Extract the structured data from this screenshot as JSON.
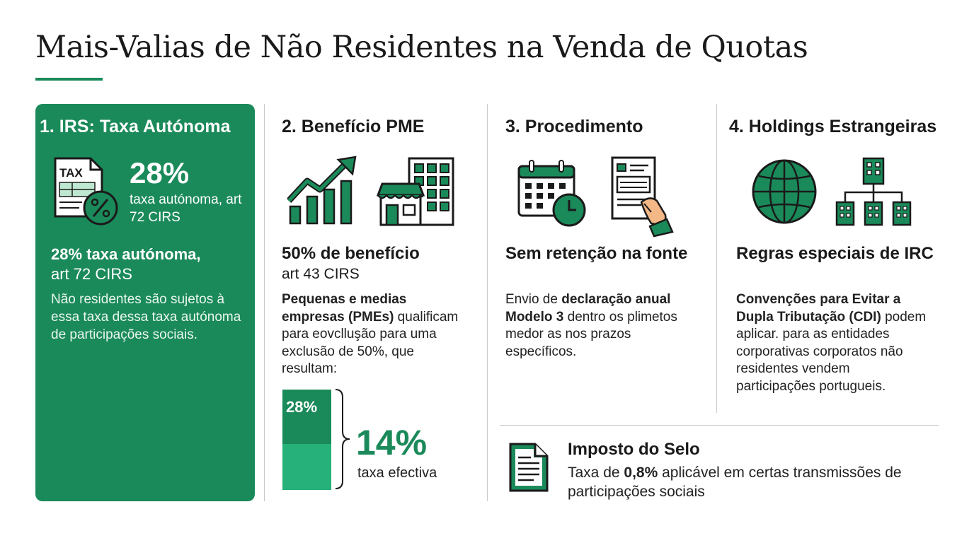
{
  "title": "Mais-Valias de Não Residentes na Venda de Quotas",
  "colors": {
    "accent": "#1b8a5a",
    "accent_light": "#26b07a",
    "divider": "#c9c9c9"
  },
  "col1": {
    "heading": "1. IRS: Taxa Autónoma",
    "icon_text": "TAX",
    "big_value": "28%",
    "big_sub": "taxa autónoma, art 72 CIRS",
    "h2": "28% taxa autónoma,",
    "h2_sub": "art 72 CIRS",
    "para": "Não residentes são sujetos à essa taxa dessa taxa autónoma de participações sociais."
  },
  "col2": {
    "heading": "2. Benefício PME",
    "h2": "50% de benefício",
    "h2_sub": "art 43 CIRS",
    "para_bold": "Pequenas e medias empresas (PMEs)",
    "para_rest": " qualificam para eovclluşão para uma exclusão de 50%, que resultam:",
    "bar_label": "28%",
    "bar_top_fraction": 0.5,
    "effective_value": "14%",
    "effective_label": "taxa efectiva"
  },
  "col3": {
    "heading": "3. Procedimento",
    "h2": "Sem retenção na fonte",
    "para_pre": "Envio de ",
    "para_bold": "declaração anual Modelo 3",
    "para_post": " dentro os plimetos medor as nos prazos específicos."
  },
  "col4": {
    "heading": "4. Holdings Estrangeiras",
    "h2": "Regras especiais de IRC",
    "para_bold": "Convenções para Evitar a Dupla Tributação (CDI)",
    "para_rest": " podem aplicar. para as entidades corporativas corporatos não residentes vendem participações portugueis."
  },
  "selo": {
    "title": "Imposto do Selo",
    "text_pre": "Taxa de ",
    "text_value": "0,8%",
    "text_post": " aplicável em certas transmissões de participações sociais"
  },
  "icons": {
    "col1": "tax-document-icon",
    "col2_growth": "growth-chart-icon",
    "col2_shop": "shop-building-icon",
    "col3_calendar": "calendar-clock-icon",
    "col3_form": "form-hand-icon",
    "col4_globe": "globe-icon",
    "col4_hierarchy": "corporate-hierarchy-icon",
    "selo": "document-icon"
  }
}
